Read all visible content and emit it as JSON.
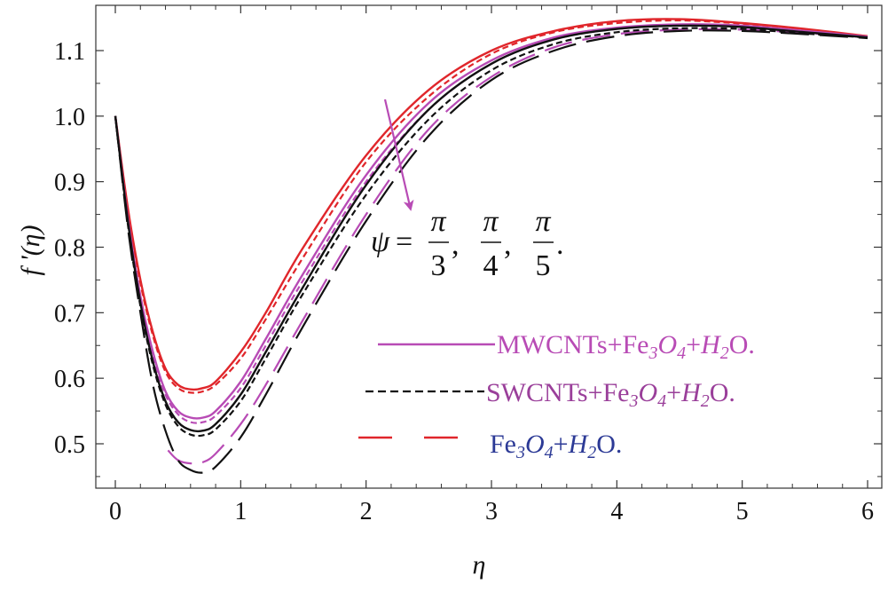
{
  "chart_data": {
    "type": "line",
    "xlabel": "η",
    "ylabel": "f '(η)",
    "xlim": [
      0,
      6
    ],
    "ylim": [
      0.42,
      1.16
    ],
    "xticks": [
      0,
      1,
      2,
      3,
      4,
      5,
      6
    ],
    "yticks": [
      0.5,
      0.6,
      0.7,
      0.8,
      0.9,
      1.0,
      1.1
    ],
    "xtick_labels": [
      "0",
      "1",
      "2",
      "3",
      "4",
      "5",
      "6"
    ],
    "ytick_labels": [
      "0.5",
      "0.6",
      "0.7",
      "0.8",
      "0.9",
      "1.0",
      "1.1"
    ],
    "grid": false,
    "annotation": {
      "lhs": "ψ",
      "eq": "=",
      "numerators": [
        "π",
        "π",
        "π"
      ],
      "denominators": [
        "3",
        "4",
        "5"
      ],
      "separators": [
        ",",
        ",",
        "."
      ]
    },
    "legend": {
      "placement": "center-right",
      "entries": [
        {
          "label_parts": [
            "MWCNTs+Fe",
            "3",
            "O",
            "4",
            "+",
            "H",
            "2",
            "O."
          ],
          "color": "#b84bb5",
          "dash": "solid"
        },
        {
          "label_parts": [
            "SWCNTs+Fe",
            "3",
            "O",
            "4",
            "+",
            "H",
            "2",
            "O."
          ],
          "color": "#111111",
          "dash": "short-dash"
        },
        {
          "label_parts": [
            "Fe",
            "3",
            "O",
            "4",
            "+",
            "H",
            "2",
            "O."
          ],
          "color": "#e0262b",
          "dash": "long-dash"
        }
      ]
    },
    "series": [
      {
        "group": "Fe3O4+H2O",
        "psi": "π/3",
        "color": "#e0262b",
        "dash": "solid",
        "points": [
          [
            0,
            1.0
          ],
          [
            0.1,
            0.86
          ],
          [
            0.2,
            0.75
          ],
          [
            0.3,
            0.67
          ],
          [
            0.4,
            0.615
          ],
          [
            0.5,
            0.59
          ],
          [
            0.6,
            0.583
          ],
          [
            0.7,
            0.585
          ],
          [
            0.8,
            0.595
          ],
          [
            1.0,
            0.64
          ],
          [
            1.2,
            0.7
          ],
          [
            1.5,
            0.8
          ],
          [
            2.0,
            0.94
          ],
          [
            2.5,
            1.04
          ],
          [
            3.0,
            1.1
          ],
          [
            3.5,
            1.13
          ],
          [
            4.0,
            1.145
          ],
          [
            4.5,
            1.148
          ],
          [
            5.0,
            1.142
          ],
          [
            5.5,
            1.133
          ],
          [
            6.0,
            1.122
          ]
        ]
      },
      {
        "group": "Fe3O4+H2O",
        "psi": "π/4",
        "color": "#e0262b",
        "dash": "short-dash",
        "points": [
          [
            0,
            1.0
          ],
          [
            0.1,
            0.855
          ],
          [
            0.2,
            0.745
          ],
          [
            0.3,
            0.665
          ],
          [
            0.4,
            0.61
          ],
          [
            0.5,
            0.585
          ],
          [
            0.6,
            0.578
          ],
          [
            0.7,
            0.58
          ],
          [
            0.8,
            0.59
          ],
          [
            1.0,
            0.63
          ],
          [
            1.2,
            0.69
          ],
          [
            1.5,
            0.785
          ],
          [
            2.0,
            0.93
          ],
          [
            2.5,
            1.03
          ],
          [
            3.0,
            1.095
          ],
          [
            3.5,
            1.128
          ],
          [
            4.0,
            1.142
          ],
          [
            4.5,
            1.146
          ],
          [
            5.0,
            1.141
          ],
          [
            5.5,
            1.132
          ],
          [
            6.0,
            1.122
          ]
        ]
      },
      {
        "group": "MWCNTs+Fe3O4+H2O",
        "psi": "π/3",
        "color": "#b84bb5",
        "dash": "solid",
        "points": [
          [
            0,
            1.0
          ],
          [
            0.1,
            0.845
          ],
          [
            0.2,
            0.725
          ],
          [
            0.3,
            0.64
          ],
          [
            0.4,
            0.58
          ],
          [
            0.5,
            0.55
          ],
          [
            0.6,
            0.54
          ],
          [
            0.7,
            0.54
          ],
          [
            0.8,
            0.55
          ],
          [
            1.0,
            0.595
          ],
          [
            1.2,
            0.66
          ],
          [
            1.5,
            0.76
          ],
          [
            2.0,
            0.91
          ],
          [
            2.5,
            1.02
          ],
          [
            3.0,
            1.085
          ],
          [
            3.5,
            1.12
          ],
          [
            4.0,
            1.135
          ],
          [
            4.5,
            1.14
          ],
          [
            5.0,
            1.138
          ],
          [
            5.5,
            1.13
          ],
          [
            6.0,
            1.121
          ]
        ]
      },
      {
        "group": "MWCNTs+Fe3O4+H2O",
        "psi": "π/4",
        "color": "#b84bb5",
        "dash": "short-dash",
        "points": [
          [
            0,
            1.0
          ],
          [
            0.1,
            0.84
          ],
          [
            0.2,
            0.72
          ],
          [
            0.3,
            0.635
          ],
          [
            0.4,
            0.575
          ],
          [
            0.5,
            0.545
          ],
          [
            0.6,
            0.533
          ],
          [
            0.7,
            0.533
          ],
          [
            0.8,
            0.543
          ],
          [
            1.0,
            0.585
          ],
          [
            1.2,
            0.65
          ],
          [
            1.5,
            0.75
          ],
          [
            2.0,
            0.9
          ],
          [
            2.5,
            1.01
          ],
          [
            3.0,
            1.08
          ],
          [
            3.5,
            1.117
          ],
          [
            4.0,
            1.133
          ],
          [
            4.5,
            1.138
          ],
          [
            5.0,
            1.137
          ],
          [
            5.5,
            1.13
          ],
          [
            6.0,
            1.121
          ]
        ]
      },
      {
        "group": "MWCNTs+Fe3O4+H2O",
        "psi": "π/5",
        "color": "#b84bb5",
        "dash": "long-dash",
        "points": [
          [
            0.42,
            0.49
          ],
          [
            0.5,
            0.475
          ],
          [
            0.6,
            0.47
          ],
          [
            0.7,
            0.472
          ],
          [
            0.8,
            0.485
          ],
          [
            1.0,
            0.53
          ],
          [
            1.2,
            0.59
          ],
          [
            1.5,
            0.69
          ],
          [
            2.0,
            0.85
          ],
          [
            2.5,
            0.98
          ],
          [
            3.0,
            1.06
          ],
          [
            3.5,
            1.105
          ],
          [
            4.0,
            1.125
          ],
          [
            4.5,
            1.132
          ],
          [
            5.0,
            1.132
          ],
          [
            5.5,
            1.127
          ],
          [
            6.0,
            1.12
          ]
        ]
      },
      {
        "group": "SWCNTs+Fe3O4+H2O",
        "psi": "π/3",
        "color": "#111111",
        "dash": "solid",
        "points": [
          [
            0,
            1.0
          ],
          [
            0.1,
            0.84
          ],
          [
            0.2,
            0.715
          ],
          [
            0.3,
            0.625
          ],
          [
            0.4,
            0.565
          ],
          [
            0.5,
            0.533
          ],
          [
            0.6,
            0.521
          ],
          [
            0.7,
            0.52
          ],
          [
            0.8,
            0.53
          ],
          [
            1.0,
            0.575
          ],
          [
            1.2,
            0.64
          ],
          [
            1.5,
            0.74
          ],
          [
            2.0,
            0.895
          ],
          [
            2.5,
            1.01
          ],
          [
            3.0,
            1.08
          ],
          [
            3.5,
            1.117
          ],
          [
            4.0,
            1.133
          ],
          [
            4.5,
            1.138
          ],
          [
            5.0,
            1.136
          ],
          [
            5.5,
            1.128
          ],
          [
            6.0,
            1.12
          ]
        ]
      },
      {
        "group": "SWCNTs+Fe3O4+H2O",
        "psi": "π/4",
        "color": "#111111",
        "dash": "short-dash",
        "points": [
          [
            0,
            1.0
          ],
          [
            0.1,
            0.835
          ],
          [
            0.2,
            0.71
          ],
          [
            0.3,
            0.62
          ],
          [
            0.4,
            0.56
          ],
          [
            0.5,
            0.527
          ],
          [
            0.6,
            0.514
          ],
          [
            0.7,
            0.513
          ],
          [
            0.8,
            0.522
          ],
          [
            1.0,
            0.565
          ],
          [
            1.2,
            0.63
          ],
          [
            1.5,
            0.73
          ],
          [
            2.0,
            0.88
          ],
          [
            2.5,
            0.995
          ],
          [
            3.0,
            1.07
          ],
          [
            3.5,
            1.11
          ],
          [
            4.0,
            1.128
          ],
          [
            4.5,
            1.134
          ],
          [
            5.0,
            1.133
          ],
          [
            5.5,
            1.126
          ],
          [
            6.0,
            1.12
          ]
        ]
      },
      {
        "group": "SWCNTs+Fe3O4+H2O",
        "psi": "π/5",
        "color": "#111111",
        "dash": "long-dash",
        "points": [
          [
            0,
            1.0
          ],
          [
            0.1,
            0.83
          ],
          [
            0.2,
            0.7
          ],
          [
            0.3,
            0.59
          ],
          [
            0.4,
            0.52
          ],
          [
            0.5,
            0.475
          ],
          [
            0.6,
            0.46
          ],
          [
            0.7,
            0.456
          ],
          [
            0.8,
            0.465
          ],
          [
            1.0,
            0.51
          ],
          [
            1.2,
            0.575
          ],
          [
            1.5,
            0.68
          ],
          [
            2.0,
            0.84
          ],
          [
            2.5,
            0.97
          ],
          [
            3.0,
            1.055
          ],
          [
            3.5,
            1.1
          ],
          [
            4.0,
            1.122
          ],
          [
            4.5,
            1.13
          ],
          [
            5.0,
            1.13
          ],
          [
            5.5,
            1.125
          ],
          [
            6.0,
            1.119
          ]
        ]
      }
    ]
  }
}
